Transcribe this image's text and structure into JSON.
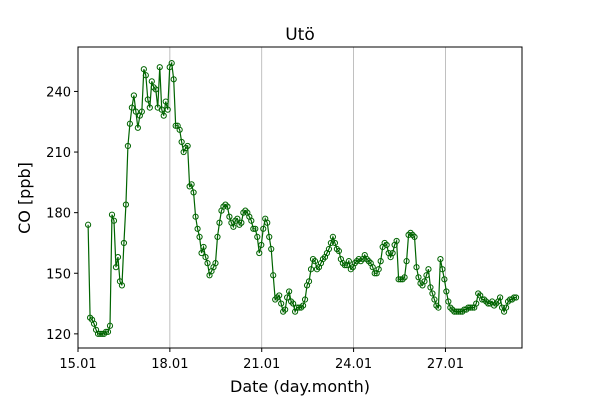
{
  "chart_data": {
    "type": "line",
    "title": "Utö",
    "xlabel": "Date (day.month)",
    "ylabel": "CO [ppb]",
    "xlim": [
      15,
      29.5
    ],
    "ylim": [
      113,
      262
    ],
    "xticks": [
      {
        "value": 15,
        "label": "15.01"
      },
      {
        "value": 18,
        "label": "18.01"
      },
      {
        "value": 21,
        "label": "21.01"
      },
      {
        "value": 24,
        "label": "24.01"
      },
      {
        "value": 27,
        "label": "27.01"
      }
    ],
    "yticks": [
      120,
      150,
      180,
      210,
      240
    ],
    "grid": "x",
    "marker": "hollow-circle",
    "series": [
      {
        "name": "CO",
        "color": "#006400",
        "x": [
          15.33,
          15.395,
          15.46,
          15.525,
          15.59,
          15.655,
          15.72,
          15.785,
          15.85,
          15.915,
          15.98,
          16.045,
          16.11,
          16.175,
          16.24,
          16.305,
          16.37,
          16.435,
          16.5,
          16.565,
          16.63,
          16.695,
          16.76,
          16.825,
          16.89,
          16.955,
          17.02,
          17.085,
          17.15,
          17.215,
          17.28,
          17.345,
          17.41,
          17.475,
          17.54,
          17.605,
          17.67,
          17.735,
          17.8,
          17.865,
          17.93,
          17.995,
          18.06,
          18.125,
          18.19,
          18.255,
          18.32,
          18.385,
          18.45,
          18.515,
          18.58,
          18.645,
          18.71,
          18.775,
          18.84,
          18.905,
          18.97,
          19.035,
          19.1,
          19.165,
          19.23,
          19.295,
          19.36,
          19.425,
          19.49,
          19.555,
          19.62,
          19.685,
          19.75,
          19.815,
          19.88,
          19.945,
          20.01,
          20.075,
          20.14,
          20.205,
          20.27,
          20.335,
          20.4,
          20.465,
          20.53,
          20.595,
          20.66,
          20.725,
          20.79,
          20.855,
          20.92,
          20.985,
          21.05,
          21.115,
          21.18,
          21.245,
          21.31,
          21.375,
          21.44,
          21.505,
          21.57,
          21.635,
          21.7,
          21.765,
          21.83,
          21.895,
          21.96,
          22.025,
          22.09,
          22.155,
          22.22,
          22.285,
          22.35,
          22.415,
          22.48,
          22.545,
          22.61,
          22.675,
          22.74,
          22.805,
          22.87,
          22.935,
          23.0,
          23.065,
          23.13,
          23.195,
          23.26,
          23.325,
          23.39,
          23.455,
          23.52,
          23.585,
          23.65,
          23.715,
          23.78,
          23.845,
          23.91,
          23.975,
          24.04,
          24.105,
          24.17,
          24.235,
          24.3,
          24.365,
          24.43,
          24.495,
          24.56,
          24.625,
          24.69,
          24.755,
          24.82,
          24.885,
          24.95,
          25.015,
          25.08,
          25.145,
          25.21,
          25.275,
          25.34,
          25.405,
          25.47,
          25.535,
          25.6,
          25.665,
          25.73,
          25.795,
          25.86,
          25.925,
          25.99,
          26.055,
          26.12,
          26.185,
          26.25,
          26.315,
          26.38,
          26.445,
          26.51,
          26.575,
          26.64,
          26.705,
          26.77,
          26.835,
          26.9,
          26.965,
          27.03,
          27.095,
          27.16,
          27.225,
          27.29,
          27.355,
          27.42,
          27.485,
          27.55,
          27.615,
          27.68,
          27.745,
          27.81,
          27.875,
          27.94,
          28.005,
          28.07,
          28.135,
          28.2,
          28.265,
          28.33,
          28.395,
          28.46,
          28.525,
          28.59,
          28.655,
          28.72,
          28.785,
          28.85,
          28.915,
          28.98,
          29.045,
          29.11,
          29.175,
          29.24,
          29.305
        ],
        "values": [
          174,
          128,
          127,
          125,
          122,
          120,
          120,
          120,
          120,
          121,
          121,
          124,
          179,
          176,
          153,
          158,
          146,
          144,
          165,
          184,
          213,
          224,
          232,
          238,
          230,
          222,
          228,
          230,
          251,
          248,
          236,
          232,
          245,
          242,
          241,
          232,
          252,
          231,
          228,
          235,
          231,
          252,
          254,
          246,
          223,
          223,
          221,
          215,
          210,
          212,
          213,
          193,
          194,
          190,
          178,
          172,
          168,
          160,
          163,
          158,
          155,
          149,
          151,
          153,
          155,
          168,
          175,
          181,
          183,
          184,
          183,
          178,
          175,
          173,
          176,
          177,
          174,
          175,
          180,
          181,
          180,
          178,
          176,
          172,
          172,
          168,
          160,
          164,
          172,
          177,
          175,
          168,
          162,
          149,
          137,
          138,
          139,
          135,
          131,
          132,
          138,
          141,
          136,
          135,
          131,
          133,
          133,
          133,
          134,
          137,
          144,
          146,
          152,
          157,
          156,
          152,
          153,
          155,
          157,
          158,
          160,
          162,
          165,
          168,
          165,
          162,
          161,
          157,
          155,
          154,
          154,
          156,
          152,
          153,
          155,
          156,
          157,
          156,
          157,
          159,
          157,
          156,
          155,
          153,
          150,
          150,
          152,
          156,
          163,
          165,
          164,
          160,
          158,
          160,
          164,
          166,
          147,
          147,
          147,
          148,
          156,
          169,
          170,
          169,
          168,
          153,
          148,
          145,
          144,
          146,
          149,
          152,
          143,
          140,
          137,
          134,
          133,
          157,
          152,
          147,
          141,
          136,
          133,
          132,
          131,
          131,
          131,
          131,
          131,
          132,
          132,
          133,
          133,
          133,
          133,
          135,
          140,
          139,
          137,
          137,
          136,
          135,
          135,
          136,
          134,
          135,
          136,
          138,
          133,
          131,
          133,
          136,
          137,
          137,
          138,
          138
        ]
      }
    ]
  }
}
